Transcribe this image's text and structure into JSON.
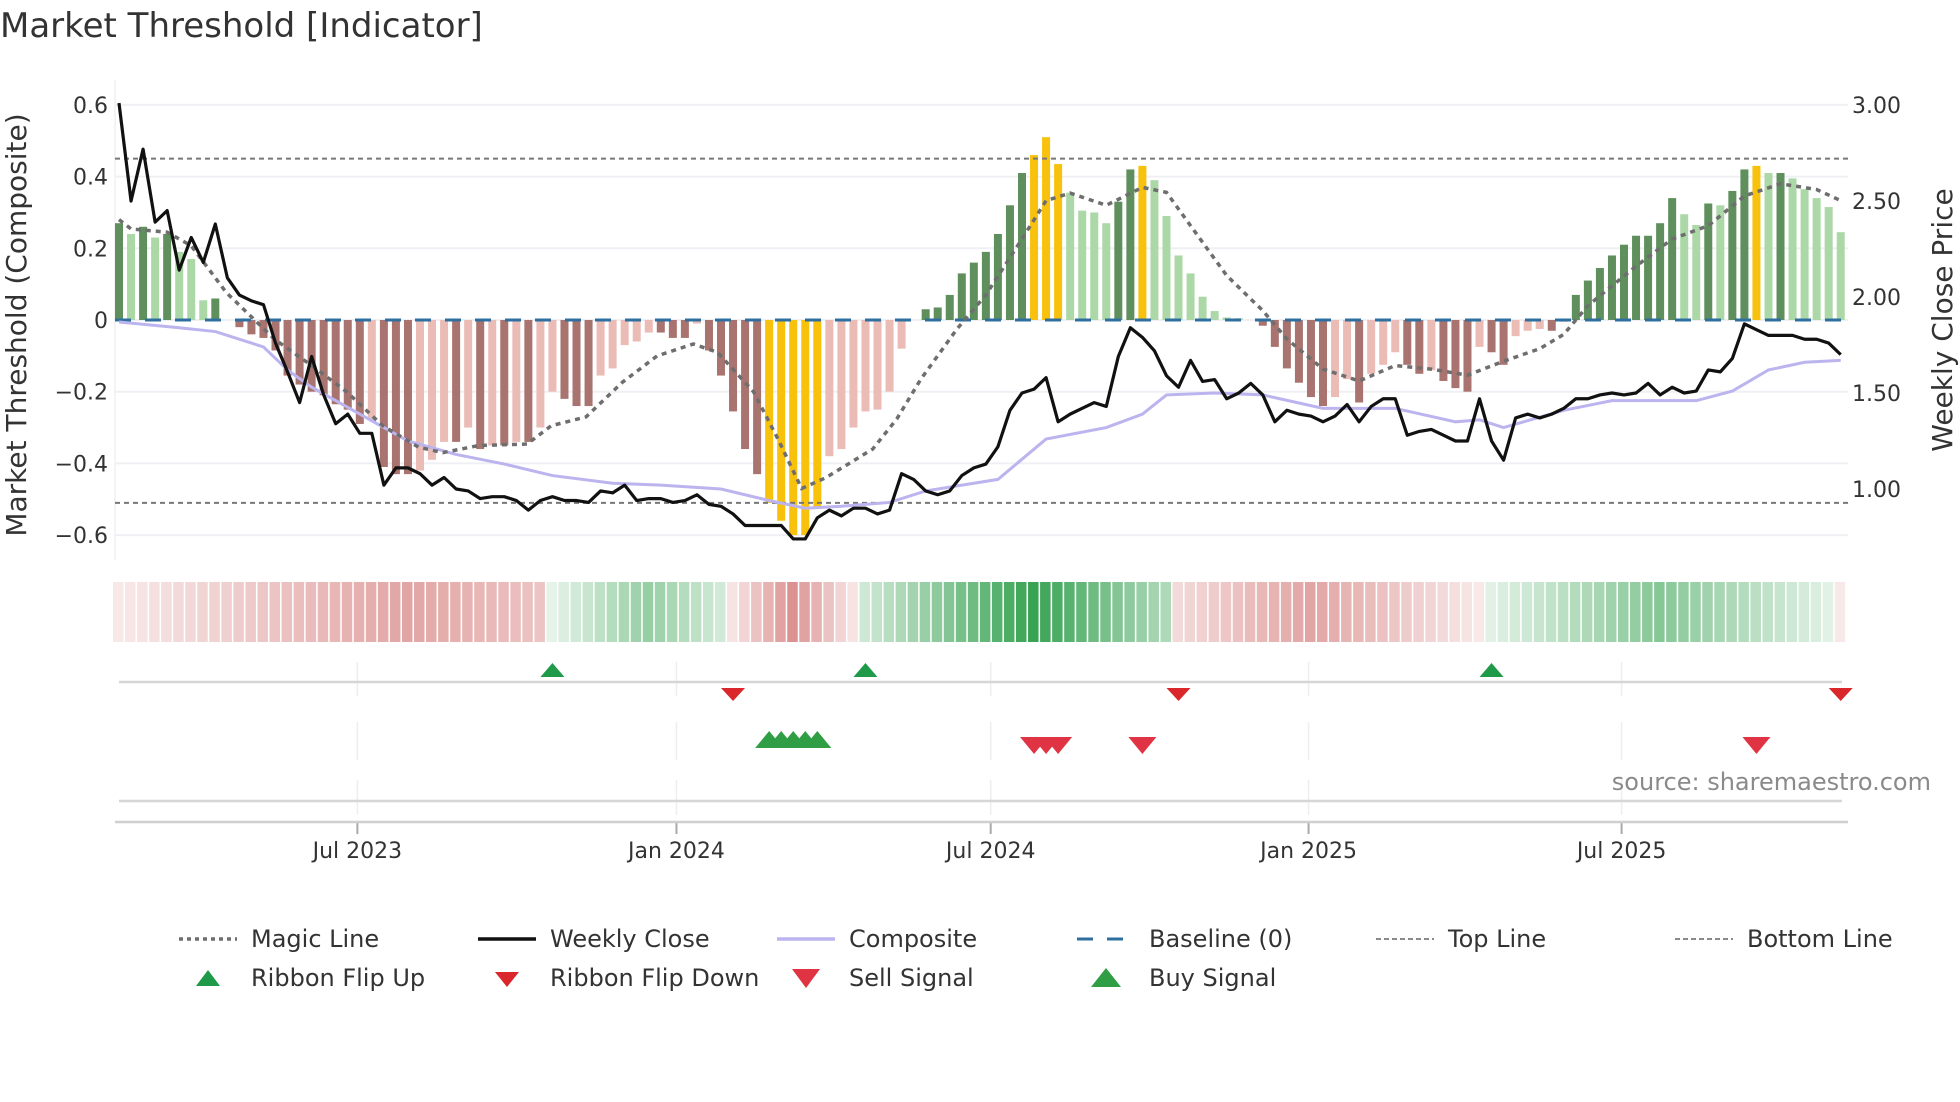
{
  "title": "Market Threshold [Indicator]",
  "source": "source: sharemaestro.com",
  "legend": {
    "magic_line": "Magic Line",
    "weekly_close": "Weekly Close",
    "composite": "Composite",
    "baseline": "Baseline (0)",
    "top_line": "Top Line",
    "bottom_line": "Bottom Line",
    "ribbon_flip_up": "Ribbon Flip Up",
    "ribbon_flip_down": "Ribbon Flip Down",
    "sell_signal": "Sell Signal",
    "buy_signal": "Buy Signal"
  },
  "colors": {
    "bar_pos_dark": "#5f8f5d",
    "bar_pos_light": "#acd8a7",
    "bar_neg_dark": "#a9736f",
    "bar_neg_light": "#ebbcb6",
    "signal_bar": "#f7c10c",
    "baseline": "#2f6f9f",
    "magic": "#6e6e6e",
    "close": "#111111",
    "composite": "#bbb4ee",
    "ribbon_red": "#cf6e6c",
    "ribbon_green": "#2e9e4a",
    "flip_up": "#1e9a48",
    "flip_down": "#d9272b",
    "buy": "#2f9e44",
    "sell": "#e03444"
  },
  "chart_data": {
    "type": "bar",
    "title": "Market Threshold [Indicator]",
    "ylabel": "Market Threshold (Composite)",
    "y2label": "Weekly Close Price",
    "ylim": [
      -0.66,
      0.66
    ],
    "y2lim": [
      0.72,
      3.09
    ],
    "yticks": [
      "0.6",
      "0.4",
      "0.2",
      "0",
      "−0.2",
      "−0.4",
      "−0.6"
    ],
    "ytick_values": [
      0.6,
      0.4,
      0.2,
      0,
      -0.2,
      -0.4,
      -0.6
    ],
    "y2ticks": [
      "3.00",
      "2.50",
      "2.00",
      "1.50",
      "1.00"
    ],
    "y2tick_values": [
      3.0,
      2.5,
      2.0,
      1.5,
      1.0
    ],
    "xticks": [
      {
        "label": "Jul 2023",
        "week": 19.8
      },
      {
        "label": "Jan 2024",
        "week": 46.3
      },
      {
        "label": "Jul 2024",
        "week": 72.4
      },
      {
        "label": "Jan 2025",
        "week": 98.8
      },
      {
        "label": "Jul 2025",
        "week": 124.8
      }
    ],
    "top_line": 0.45,
    "bottom_line": -0.51,
    "baseline": 0,
    "composite_bars": [
      0.27,
      0.24,
      0.26,
      0.23,
      0.24,
      0.19,
      0.17,
      0.055,
      0.06,
      0,
      -0.02,
      -0.04,
      -0.05,
      -0.085,
      -0.155,
      -0.18,
      -0.2,
      -0.21,
      -0.235,
      -0.25,
      -0.29,
      -0.28,
      -0.41,
      -0.43,
      -0.43,
      -0.42,
      -0.39,
      -0.34,
      -0.34,
      -0.3,
      -0.36,
      -0.35,
      -0.35,
      -0.34,
      -0.34,
      -0.3,
      -0.2,
      -0.22,
      -0.24,
      -0.24,
      -0.155,
      -0.135,
      -0.07,
      -0.06,
      -0.035,
      -0.035,
      -0.05,
      -0.05,
      -0.01,
      -0.085,
      -0.155,
      -0.255,
      -0.36,
      -0.43,
      -0.51,
      -0.56,
      -0.6,
      -0.6,
      -0.52,
      -0.38,
      -0.36,
      -0.3,
      -0.255,
      -0.25,
      -0.2,
      -0.08,
      0,
      0.03,
      0.035,
      0.07,
      0.13,
      0.16,
      0.19,
      0.24,
      0.32,
      0.41,
      0.46,
      0.51,
      0.435,
      0.355,
      0.305,
      0.3,
      0.27,
      0.33,
      0.42,
      0.43,
      0.39,
      0.29,
      0.18,
      0.13,
      0.065,
      0.025,
      0.007,
      0.005,
      0,
      -0.016,
      -0.075,
      -0.135,
      -0.175,
      -0.215,
      -0.24,
      -0.215,
      -0.165,
      -0.23,
      -0.15,
      -0.125,
      -0.09,
      -0.125,
      -0.15,
      -0.14,
      -0.17,
      -0.19,
      -0.2,
      -0.075,
      -0.09,
      -0.125,
      -0.045,
      -0.03,
      -0.025,
      -0.03,
      -0.005,
      0.07,
      0.11,
      0.145,
      0.18,
      0.21,
      0.235,
      0.235,
      0.27,
      0.34,
      0.295,
      0.265,
      0.325,
      0.32,
      0.36,
      0.42,
      0.43,
      0.41,
      0.41,
      0.395,
      0.365,
      0.34,
      0.315,
      0.245
    ],
    "weekly_close": [
      3.01,
      2.5,
      2.77,
      2.39,
      2.45,
      2.14,
      2.31,
      2.18,
      2.38,
      2.1,
      2.01,
      1.98,
      1.96,
      1.76,
      1.61,
      1.45,
      1.69,
      1.49,
      1.34,
      1.39,
      1.29,
      1.29,
      1.02,
      1.11,
      1.11,
      1.08,
      1.02,
      1.06,
      1.0,
      0.99,
      0.95,
      0.96,
      0.96,
      0.94,
      0.89,
      0.94,
      0.96,
      0.94,
      0.94,
      0.93,
      0.99,
      0.98,
      1.02,
      0.94,
      0.95,
      0.95,
      0.93,
      0.94,
      0.97,
      0.92,
      0.91,
      0.87,
      0.81,
      0.81,
      0.81,
      0.81,
      0.74,
      0.74,
      0.85,
      0.89,
      0.86,
      0.9,
      0.9,
      0.87,
      0.89,
      1.08,
      1.05,
      0.99,
      0.97,
      0.99,
      1.07,
      1.11,
      1.13,
      1.22,
      1.41,
      1.5,
      1.52,
      1.58,
      1.35,
      1.39,
      1.42,
      1.45,
      1.43,
      1.69,
      1.84,
      1.79,
      1.72,
      1.59,
      1.53,
      1.67,
      1.56,
      1.57,
      1.47,
      1.5,
      1.55,
      1.49,
      1.35,
      1.41,
      1.39,
      1.38,
      1.35,
      1.38,
      1.44,
      1.35,
      1.43,
      1.47,
      1.47,
      1.28,
      1.3,
      1.31,
      1.28,
      1.25,
      1.25,
      1.47,
      1.25,
      1.15,
      1.37,
      1.39,
      1.37,
      1.39,
      1.42,
      1.47,
      1.47,
      1.49,
      1.5,
      1.49,
      1.5,
      1.55,
      1.49,
      1.53,
      1.5,
      1.51,
      1.62,
      1.61,
      1.68,
      1.86,
      1.83,
      1.8,
      1.8,
      1.8,
      1.78,
      1.78,
      1.76,
      1.7
    ],
    "composite_line": [
      [
        0,
        1.87
      ],
      [
        5,
        1.84
      ],
      [
        8,
        1.82
      ],
      [
        12,
        1.74
      ],
      [
        14,
        1.62
      ],
      [
        16,
        1.53
      ],
      [
        20,
        1.39
      ],
      [
        24,
        1.25
      ],
      [
        28,
        1.18
      ],
      [
        32,
        1.13
      ],
      [
        36,
        1.07
      ],
      [
        41,
        1.03
      ],
      [
        45,
        1.02
      ],
      [
        50,
        1.0
      ],
      [
        54,
        0.94
      ],
      [
        57,
        0.9
      ],
      [
        60,
        0.91
      ],
      [
        64,
        0.93
      ],
      [
        67,
        0.99
      ],
      [
        71,
        1.03
      ],
      [
        73,
        1.05
      ],
      [
        77,
        1.26
      ],
      [
        82,
        1.32
      ],
      [
        85,
        1.39
      ],
      [
        87,
        1.49
      ],
      [
        91,
        1.5
      ],
      [
        95,
        1.49
      ],
      [
        100,
        1.42
      ],
      [
        106,
        1.42
      ],
      [
        111,
        1.35
      ],
      [
        113,
        1.36
      ],
      [
        115,
        1.32
      ],
      [
        120,
        1.41
      ],
      [
        124,
        1.46
      ],
      [
        131,
        1.46
      ],
      [
        134,
        1.51
      ],
      [
        137,
        1.62
      ],
      [
        140,
        1.66
      ],
      [
        143,
        1.67
      ]
    ],
    "magic_line": [
      [
        0,
        0.28
      ],
      [
        1,
        0.254
      ],
      [
        4,
        0.245
      ],
      [
        6,
        0.207
      ],
      [
        8.9,
        0.077
      ],
      [
        12.9,
        -0.053
      ],
      [
        16,
        -0.127
      ],
      [
        18.9,
        -0.2
      ],
      [
        21.9,
        -0.295
      ],
      [
        24.9,
        -0.355
      ],
      [
        26.9,
        -0.37
      ],
      [
        29.9,
        -0.35
      ],
      [
        33.9,
        -0.346
      ],
      [
        35.9,
        -0.295
      ],
      [
        38.8,
        -0.27
      ],
      [
        41.8,
        -0.174
      ],
      [
        44.7,
        -0.1
      ],
      [
        47.7,
        -0.067
      ],
      [
        49.7,
        -0.09
      ],
      [
        52.7,
        -0.2
      ],
      [
        54.7,
        -0.33
      ],
      [
        56.7,
        -0.47
      ],
      [
        58.7,
        -0.44
      ],
      [
        62.6,
        -0.36
      ],
      [
        64.6,
        -0.276
      ],
      [
        66.6,
        -0.165
      ],
      [
        69.6,
        -0.025
      ],
      [
        72,
        0.07
      ],
      [
        75,
        0.226
      ],
      [
        77,
        0.333
      ],
      [
        79,
        0.354
      ],
      [
        82,
        0.32
      ],
      [
        85,
        0.37
      ],
      [
        87,
        0.356
      ],
      [
        89,
        0.263
      ],
      [
        92,
        0.124
      ],
      [
        95,
        0.026
      ],
      [
        97,
        -0.053
      ],
      [
        100,
        -0.137
      ],
      [
        103,
        -0.17
      ],
      [
        106,
        -0.127
      ],
      [
        109,
        -0.137
      ],
      [
        112,
        -0.154
      ],
      [
        115,
        -0.115
      ],
      [
        118,
        -0.08
      ],
      [
        120,
        -0.04
      ],
      [
        122,
        0.04
      ],
      [
        126,
        0.15
      ],
      [
        129,
        0.226
      ],
      [
        132,
        0.263
      ],
      [
        135,
        0.346
      ],
      [
        138,
        0.38
      ],
      [
        141,
        0.364
      ],
      [
        143,
        0.333
      ]
    ],
    "signal_weeks": [
      54,
      55,
      56,
      57,
      58,
      76,
      77,
      78,
      85,
      136
    ],
    "ribbon_segments": [
      {
        "start": 0,
        "end": 35,
        "direction": "down",
        "peak_week": 24,
        "peak": 0.62
      },
      {
        "start": 36,
        "end": 50,
        "direction": "up",
        "peak_week": 44,
        "peak": 0.5
      },
      {
        "start": 51,
        "end": 61,
        "direction": "down",
        "peak_week": 56,
        "peak": 0.75
      },
      {
        "start": 62,
        "end": 87,
        "direction": "up",
        "peak_week": 76,
        "peak": 0.95
      },
      {
        "start": 88,
        "end": 113,
        "direction": "down",
        "peak_week": 99,
        "peak": 0.62
      },
      {
        "start": 114,
        "end": 142,
        "direction": "up",
        "peak_week": 128,
        "peak": 0.58
      },
      {
        "start": 143,
        "end": 143,
        "direction": "down",
        "peak_week": 143,
        "peak": 0.15
      }
    ],
    "ribbon_flip_up": [
      36,
      62,
      114
    ],
    "ribbon_flip_down": [
      51,
      88,
      143
    ],
    "buy_signals": [
      54,
      55,
      56,
      57,
      58
    ],
    "sell_signals": [
      76,
      77,
      78,
      85,
      136
    ]
  }
}
